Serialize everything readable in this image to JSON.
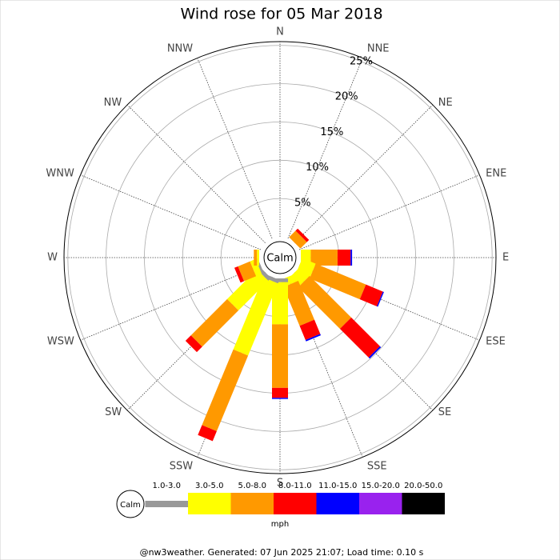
{
  "chart_data": {
    "type": "rose",
    "title": "Wind rose for 05 Mar 2018",
    "categories": [
      "N",
      "NNE",
      "NE",
      "ENE",
      "E",
      "ESE",
      "SE",
      "SSE",
      "S",
      "SSW",
      "SW",
      "WSW",
      "W",
      "WNW",
      "NW",
      "NNW"
    ],
    "center_label": "Calm",
    "unit": "mph",
    "footer": "@nw3weather. Generated: 07 Jun 2025 21:07; Load time: 0.10 s",
    "ylim": [
      0,
      25.5
    ],
    "yticks": [
      {
        "value": 5,
        "label": "5%"
      },
      {
        "value": 10,
        "label": "10%"
      },
      {
        "value": 15,
        "label": "15%"
      },
      {
        "value": 20,
        "label": "20%"
      },
      {
        "value": 25,
        "label": "25%"
      }
    ],
    "series": [
      {
        "name": "1.0-3.0",
        "color": "#999999",
        "values": [
          0,
          0,
          0,
          0,
          0,
          0,
          0,
          0,
          0.5,
          0.5,
          0.5,
          0.3,
          0,
          0,
          0,
          0
        ]
      },
      {
        "name": "3.0-5.0",
        "color": "#ffff00",
        "values": [
          0,
          0,
          0,
          0,
          1.3,
          1.9,
          1.7,
          1.0,
          5.5,
          10.2,
          5.5,
          0.8,
          0.3,
          0,
          0,
          0
        ]
      },
      {
        "name": "5.0-8.0",
        "color": "#ff9900",
        "values": [
          0,
          0,
          1.2,
          0,
          3.5,
          7.1,
          7.7,
          5.5,
          8.3,
          10.7,
          6.7,
          1.7,
          0.4,
          0,
          0,
          0
        ]
      },
      {
        "name": "8.0-11.0",
        "color": "#ff0000",
        "values": [
          0,
          0,
          0.4,
          0,
          1.7,
          2.4,
          5.3,
          2.0,
          1.3,
          1.4,
          1.0,
          0.5,
          0,
          0,
          0,
          0
        ]
      },
      {
        "name": "11.0-15.0",
        "color": "#0000ff",
        "values": [
          0,
          0,
          0,
          0,
          0.2,
          0.15,
          0.2,
          0.2,
          0.15,
          0,
          0,
          0,
          0,
          0,
          0,
          0
        ]
      },
      {
        "name": "15.0-20.0",
        "color": "#9922ee",
        "values": [
          0,
          0,
          0,
          0,
          0,
          0,
          0,
          0,
          0,
          0,
          0,
          0,
          0,
          0,
          0,
          0
        ]
      },
      {
        "name": "20.0-50.0",
        "color": "#000000",
        "values": [
          0,
          0,
          0,
          0,
          0,
          0,
          0,
          0,
          0,
          0,
          0,
          0,
          0,
          0,
          0,
          0
        ]
      }
    ]
  }
}
